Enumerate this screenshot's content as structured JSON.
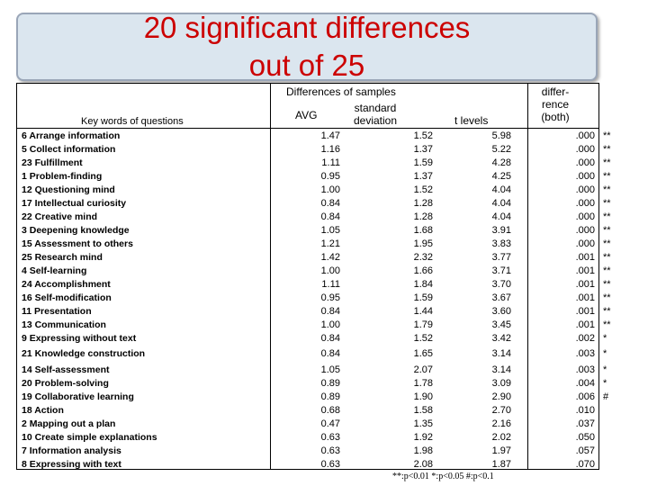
{
  "title": {
    "line1": "20 significant differences",
    "line2": "out of 25"
  },
  "headers": {
    "group": "Differences of samples",
    "avg": "AVG",
    "sd_line1": "standard",
    "sd_line2": "deviation",
    "t": "t levels",
    "p_line1": "differ-",
    "p_line2": "rence",
    "p_line3": "(both)",
    "keywords": "Key words of questions"
  },
  "rows_group1": [
    {
      "kw": "6 Arrange information",
      "avg": "1.47",
      "sd": "1.52",
      "t": "5.98",
      "p": ".000",
      "sig": "**"
    },
    {
      "kw": "5 Collect information",
      "avg": "1.16",
      "sd": "1.37",
      "t": "5.22",
      "p": ".000",
      "sig": "**"
    },
    {
      "kw": "23 Fulfillment",
      "avg": "1.11",
      "sd": "1.59",
      "t": "4.28",
      "p": ".000",
      "sig": "**"
    },
    {
      "kw": "1 Problem-finding",
      "avg": "0.95",
      "sd": "1.37",
      "t": "4.25",
      "p": ".000",
      "sig": "**"
    },
    {
      "kw": "12 Questioning mind",
      "avg": "1.00",
      "sd": "1.52",
      "t": "4.04",
      "p": ".000",
      "sig": "**"
    },
    {
      "kw": "17 Intellectual curiosity",
      "avg": "0.84",
      "sd": "1.28",
      "t": "4.04",
      "p": ".000",
      "sig": "**"
    },
    {
      "kw": "22 Creative mind",
      "avg": "0.84",
      "sd": "1.28",
      "t": "4.04",
      "p": ".000",
      "sig": "**"
    },
    {
      "kw": "3 Deepening knowledge",
      "avg": "1.05",
      "sd": "1.68",
      "t": "3.91",
      "p": ".000",
      "sig": "**"
    },
    {
      "kw": "15 Assessment to others",
      "avg": "1.21",
      "sd": "1.95",
      "t": "3.83",
      "p": ".000",
      "sig": "**"
    },
    {
      "kw": "25 Research mind",
      "avg": "1.42",
      "sd": "2.32",
      "t": "3.77",
      "p": ".001",
      "sig": "**"
    },
    {
      "kw": "4 Self-learning",
      "avg": "1.00",
      "sd": "1.66",
      "t": "3.71",
      "p": ".001",
      "sig": "**"
    },
    {
      "kw": "24 Accomplishment",
      "avg": "1.11",
      "sd": "1.84",
      "t": "3.70",
      "p": ".001",
      "sig": "**"
    },
    {
      "kw": "16 Self-modification",
      "avg": "0.95",
      "sd": "1.59",
      "t": "3.67",
      "p": ".001",
      "sig": "**"
    },
    {
      "kw": "11 Presentation",
      "avg": "0.84",
      "sd": "1.44",
      "t": "3.60",
      "p": ".001",
      "sig": "**"
    },
    {
      "kw": "13 Communication",
      "avg": "1.00",
      "sd": "1.79",
      "t": "3.45",
      "p": ".001",
      "sig": "**"
    },
    {
      "kw": "9 Expressing without text",
      "avg": "0.84",
      "sd": "1.52",
      "t": "3.42",
      "p": ".002",
      "sig": "*"
    },
    {
      "kw": "21 Knowledge construction",
      "avg": "0.84",
      "sd": "1.65",
      "t": "3.14",
      "p": ".003",
      "sig": "*"
    }
  ],
  "rows_group2": [
    {
      "kw": "14 Self-assessment",
      "avg": "1.05",
      "sd": "2.07",
      "t": "3.14",
      "p": ".003",
      "sig": "*"
    },
    {
      "kw": "20 Problem-solving",
      "avg": "0.89",
      "sd": "1.78",
      "t": "3.09",
      "p": ".004",
      "sig": "*"
    },
    {
      "kw": "19 Collaborative learning",
      "avg": "0.89",
      "sd": "1.90",
      "t": "2.90",
      "p": ".006",
      "sig": "#"
    },
    {
      "kw": "18 Action",
      "avg": "0.68",
      "sd": "1.58",
      "t": "2.70",
      "p": ".010",
      "sig": ""
    },
    {
      "kw": "2 Mapping out a plan",
      "avg": "0.47",
      "sd": "1.35",
      "t": "2.16",
      "p": ".037",
      "sig": ""
    },
    {
      "kw": "10 Create simple explanations",
      "avg": "0.63",
      "sd": "1.92",
      "t": "2.02",
      "p": ".050",
      "sig": ""
    },
    {
      "kw": "7 Information analysis",
      "avg": "0.63",
      "sd": "1.98",
      "t": "1.97",
      "p": ".057",
      "sig": ""
    },
    {
      "kw": "8 Expressing with text",
      "avg": "0.63",
      "sd": "2.08",
      "t": "1.87",
      "p": ".070",
      "sig": ""
    }
  ],
  "footnote": "**:p<0.01 *:p<0.05 #:p<0.1",
  "colors": {
    "title": "#cc0000",
    "title_bg": "#dbe6ef"
  }
}
